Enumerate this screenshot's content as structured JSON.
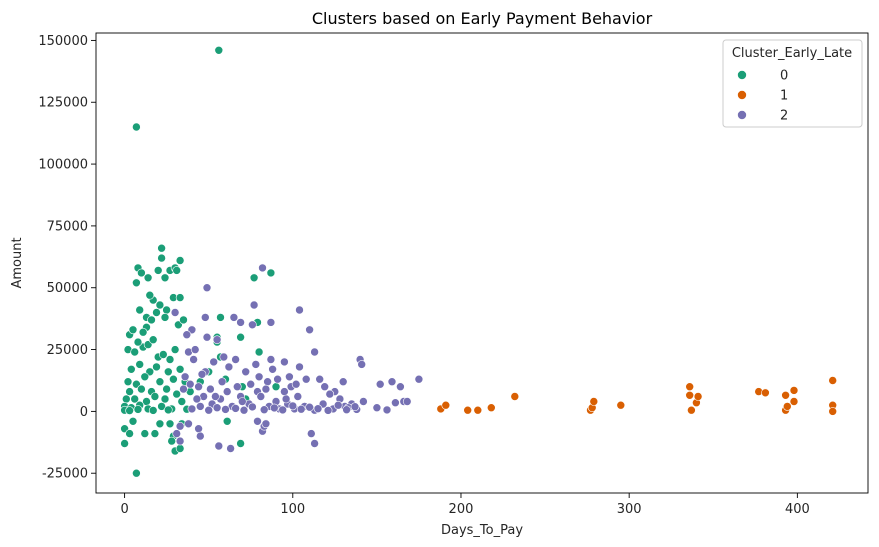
{
  "chart_data": {
    "type": "scatter",
    "title": "Clusters based on Early Payment Behavior",
    "xlabel": "Days_To_Pay",
    "ylabel": "Amount",
    "xlim": [
      -17,
      442
    ],
    "ylim": [
      -33000,
      153000
    ],
    "xticks": [
      0,
      100,
      200,
      300,
      400
    ],
    "yticks": [
      -25000,
      0,
      25000,
      50000,
      75000,
      100000,
      125000,
      150000
    ],
    "grid": false,
    "legend": {
      "title": "Cluster_Early_Late",
      "placement": "top-right"
    },
    "series": [
      {
        "name": "0",
        "color": "#1b9e77",
        "points": [
          [
            7,
            115000
          ],
          [
            56,
            146000
          ],
          [
            7,
            -25000
          ],
          [
            22,
            66000
          ],
          [
            22,
            62000
          ],
          [
            8,
            58000
          ],
          [
            27,
            57000
          ],
          [
            30,
            58000
          ],
          [
            33,
            61000
          ],
          [
            10,
            56000
          ],
          [
            31,
            57000
          ],
          [
            20,
            57000
          ],
          [
            24,
            54000
          ],
          [
            14,
            54000
          ],
          [
            7,
            52000
          ],
          [
            77,
            54000
          ],
          [
            87,
            56000
          ],
          [
            17,
            45000
          ],
          [
            29,
            46000
          ],
          [
            33,
            46000
          ],
          [
            21,
            43000
          ],
          [
            25,
            41000
          ],
          [
            19,
            40000
          ],
          [
            13,
            38000
          ],
          [
            9,
            41000
          ],
          [
            24,
            38000
          ],
          [
            13,
            34000
          ],
          [
            16,
            37000
          ],
          [
            32,
            35000
          ],
          [
            35,
            37000
          ],
          [
            57,
            38000
          ],
          [
            69,
            30000
          ],
          [
            79,
            36000
          ],
          [
            15,
            47000
          ],
          [
            3,
            31000
          ],
          [
            0,
            -13000
          ],
          [
            0,
            -7000
          ],
          [
            3,
            -9000
          ],
          [
            5,
            -4000
          ],
          [
            12,
            -9000
          ],
          [
            18,
            -9000
          ],
          [
            30,
            -16000
          ],
          [
            33,
            -15000
          ],
          [
            29,
            -10000
          ],
          [
            21,
            -5000
          ],
          [
            28,
            -12000
          ],
          [
            27,
            -5000
          ],
          [
            61,
            -4000
          ],
          [
            69,
            -13000
          ],
          [
            34,
            -5000
          ],
          [
            55,
            30000
          ],
          [
            57,
            22000
          ],
          [
            50,
            16000
          ],
          [
            80,
            24000
          ],
          [
            55,
            28000
          ],
          [
            45,
            12000
          ],
          [
            60,
            13000
          ],
          [
            70,
            10000
          ],
          [
            72,
            5000
          ],
          [
            90,
            10000
          ],
          [
            2,
            25000
          ],
          [
            6,
            24000
          ],
          [
            11,
            26000
          ],
          [
            14,
            27000
          ],
          [
            17,
            29000
          ],
          [
            5,
            33000
          ],
          [
            8,
            28000
          ],
          [
            11,
            32000
          ],
          [
            20,
            22000
          ],
          [
            23,
            23000
          ],
          [
            27,
            21000
          ],
          [
            30,
            25000
          ],
          [
            9,
            19000
          ],
          [
            4,
            17000
          ],
          [
            15,
            16000
          ],
          [
            19,
            18000
          ],
          [
            26,
            16000
          ],
          [
            33,
            17000
          ],
          [
            12,
            14000
          ],
          [
            2,
            12000
          ],
          [
            7,
            11000
          ],
          [
            21,
            12000
          ],
          [
            29,
            13000
          ],
          [
            36,
            12000
          ],
          [
            3,
            8000
          ],
          [
            10,
            9000
          ],
          [
            16,
            8000
          ],
          [
            25,
            9000
          ],
          [
            31,
            7000
          ],
          [
            39,
            8000
          ],
          [
            1,
            5000
          ],
          [
            6,
            5000
          ],
          [
            13,
            4000
          ],
          [
            18,
            6000
          ],
          [
            24,
            5000
          ],
          [
            34,
            4000
          ],
          [
            0,
            2000
          ],
          [
            4,
            1500
          ],
          [
            9,
            2500
          ],
          [
            14,
            1000
          ],
          [
            22,
            2000
          ],
          [
            28,
            1000
          ],
          [
            0,
            500
          ],
          [
            3,
            300
          ],
          [
            8,
            800
          ],
          [
            17,
            400
          ],
          [
            26,
            600
          ],
          [
            37,
            900
          ]
        ]
      },
      {
        "name": "1",
        "color": "#d95f02",
        "points": [
          [
            188,
            1000
          ],
          [
            191,
            2500
          ],
          [
            204,
            500
          ],
          [
            210,
            500
          ],
          [
            218,
            1500
          ],
          [
            232,
            6000
          ],
          [
            277,
            500
          ],
          [
            278,
            1500
          ],
          [
            279,
            4000
          ],
          [
            295,
            2500
          ],
          [
            336,
            10000
          ],
          [
            336,
            6500
          ],
          [
            337,
            500
          ],
          [
            340,
            3500
          ],
          [
            341,
            6000
          ],
          [
            377,
            8000
          ],
          [
            381,
            7500
          ],
          [
            393,
            6500
          ],
          [
            393,
            500
          ],
          [
            394,
            2000
          ],
          [
            398,
            4000
          ],
          [
            398,
            8500
          ],
          [
            421,
            12500
          ],
          [
            421,
            2500
          ],
          [
            421,
            0
          ]
        ]
      },
      {
        "name": "2",
        "color": "#7570b3",
        "points": [
          [
            49,
            50000
          ],
          [
            82,
            58000
          ],
          [
            104,
            41000
          ],
          [
            48,
            38000
          ],
          [
            65,
            38000
          ],
          [
            69,
            36000
          ],
          [
            87,
            36000
          ],
          [
            77,
            43000
          ],
          [
            110,
            33000
          ],
          [
            76,
            35000
          ],
          [
            49,
            30000
          ],
          [
            55,
            29000
          ],
          [
            40,
            33000
          ],
          [
            37,
            31000
          ],
          [
            113,
            24000
          ],
          [
            140,
            21000
          ],
          [
            141,
            19000
          ],
          [
            30,
            40000
          ],
          [
            152,
            11000
          ],
          [
            159,
            12000
          ],
          [
            164,
            10000
          ],
          [
            175,
            13000
          ],
          [
            150,
            1500
          ],
          [
            161,
            3500
          ],
          [
            156,
            600
          ],
          [
            166,
            4000
          ],
          [
            168,
            4000
          ],
          [
            130,
            12000
          ],
          [
            125,
            8000
          ],
          [
            131,
            2000
          ],
          [
            111,
            -9000
          ],
          [
            113,
            -13000
          ],
          [
            63,
            -15000
          ],
          [
            56,
            -14000
          ],
          [
            44,
            -7000
          ],
          [
            45,
            -10000
          ],
          [
            38,
            -5000
          ],
          [
            31,
            -9000
          ],
          [
            33,
            -6000
          ],
          [
            33,
            -12000
          ],
          [
            82,
            -8000
          ],
          [
            83,
            -6000
          ],
          [
            84,
            -5000
          ],
          [
            79,
            -4000
          ],
          [
            98,
            14000
          ],
          [
            104,
            18000
          ],
          [
            95,
            20000
          ],
          [
            88,
            17000
          ],
          [
            99,
            10000
          ],
          [
            108,
            13000
          ],
          [
            116,
            13000
          ],
          [
            119,
            10000
          ],
          [
            122,
            7000
          ],
          [
            128,
            5000
          ],
          [
            135,
            3000
          ],
          [
            142,
            4000
          ],
          [
            103,
            6000
          ],
          [
            95,
            8000
          ],
          [
            90,
            4000
          ],
          [
            85,
            12000
          ],
          [
            80,
            14000
          ],
          [
            72,
            16000
          ],
          [
            67,
            10000
          ],
          [
            62,
            18000
          ],
          [
            58,
            12000
          ],
          [
            53,
            20000
          ],
          [
            48,
            16000
          ],
          [
            44,
            10000
          ],
          [
            41,
            21000
          ],
          [
            36,
            14000
          ],
          [
            38,
            24000
          ],
          [
            42,
            25000
          ],
          [
            47,
            6000
          ],
          [
            52,
            3000
          ],
          [
            57,
            5000
          ],
          [
            64,
            2000
          ],
          [
            69,
            6000
          ],
          [
            74,
            3000
          ],
          [
            79,
            8000
          ],
          [
            86,
            2000
          ],
          [
            92,
            1000
          ],
          [
            97,
            3000
          ],
          [
            101,
            1000
          ],
          [
            107,
            2000
          ],
          [
            113,
            500
          ],
          [
            118,
            3000
          ],
          [
            124,
            1000
          ],
          [
            133,
            1500
          ],
          [
            138,
            800
          ],
          [
            40,
            1000
          ],
          [
            45,
            2000
          ],
          [
            50,
            500
          ],
          [
            55,
            1500
          ],
          [
            60,
            800
          ],
          [
            66,
            1200
          ],
          [
            71,
            500
          ],
          [
            76,
            1800
          ],
          [
            83,
            700
          ],
          [
            89,
            1400
          ],
          [
            94,
            600
          ],
          [
            100,
            2200
          ],
          [
            105,
            900
          ],
          [
            110,
            1700
          ],
          [
            115,
            1100
          ],
          [
            121,
            400
          ],
          [
            127,
            2500
          ],
          [
            132,
            700
          ],
          [
            137,
            1900
          ],
          [
            35,
            9000
          ],
          [
            39,
            11000
          ],
          [
            43,
            5000
          ],
          [
            46,
            15000
          ],
          [
            51,
            9000
          ],
          [
            54,
            6000
          ],
          [
            59,
            22000
          ],
          [
            61,
            8000
          ],
          [
            66,
            21000
          ],
          [
            70,
            4000
          ],
          [
            75,
            11000
          ],
          [
            78,
            19000
          ],
          [
            81,
            6000
          ],
          [
            84,
            9000
          ],
          [
            87,
            21000
          ],
          [
            91,
            13000
          ],
          [
            96,
            5000
          ],
          [
            102,
            11000
          ]
        ]
      }
    ]
  }
}
